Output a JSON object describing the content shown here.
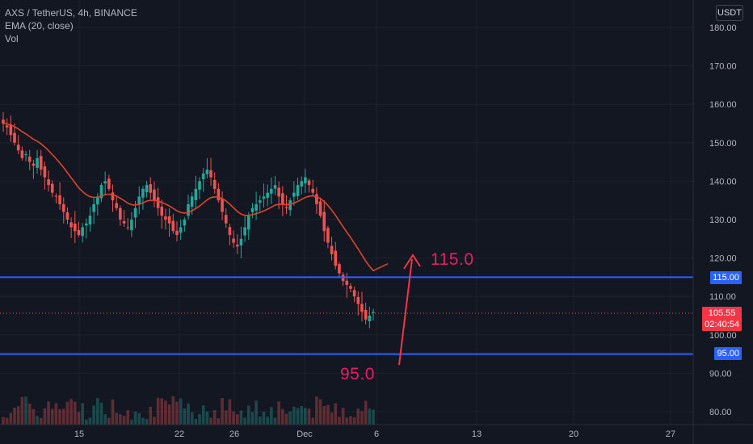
{
  "header": {
    "symbol": "AXS / TetherUS, 4h, BINANCE",
    "indicator_ema": "EMA (20, close)",
    "indicator_vol": "Vol",
    "currency": "USDT"
  },
  "axis": {
    "y_ticks": [
      "180.00",
      "170.00",
      "160.00",
      "150.00",
      "140.00",
      "130.00",
      "120.00",
      "110.00",
      "100.00",
      "90.00",
      "80.00"
    ],
    "x_ticks": [
      "15",
      "22",
      "26",
      "Dec",
      "6",
      "13",
      "20",
      "27"
    ]
  },
  "price_tags": {
    "level_high": "115.00",
    "level_low": "95.00",
    "last_price": "105.55",
    "countdown": "02:40:54"
  },
  "annotations": {
    "upper_target": "115.0",
    "lower_target": "95.0"
  },
  "colors": {
    "background": "#131722",
    "up_candle": "#26a69a",
    "down_candle": "#ef5350",
    "ema_line": "#e0452a",
    "horizontal_lines": "#2962ff",
    "annotation": "#e91e63",
    "arrow": "#f23645"
  },
  "chart_data": {
    "type": "candlestick",
    "ylim": [
      76,
      186
    ],
    "horizontal_levels": [
      115,
      95
    ],
    "last_price": 105.55,
    "close_series": [
      155,
      154,
      152,
      150,
      148,
      146,
      147,
      145,
      144,
      146,
      143,
      141,
      139,
      137,
      136,
      134,
      132,
      130,
      128,
      127,
      126,
      128,
      129,
      131,
      134,
      136,
      139,
      140,
      138,
      135,
      133,
      130,
      129,
      128,
      130,
      133,
      136,
      138,
      139,
      137,
      135,
      133,
      131,
      130,
      129,
      127,
      126,
      128,
      130,
      134,
      136,
      138,
      140,
      142,
      143,
      141,
      138,
      135,
      132,
      129,
      126,
      124,
      123,
      125,
      128,
      131,
      133,
      134,
      135,
      136,
      137,
      138,
      139,
      136,
      134,
      133,
      135,
      137,
      139,
      140,
      141,
      139,
      137,
      134,
      131,
      127,
      124,
      121,
      118,
      116,
      114,
      113,
      112,
      110,
      108,
      106,
      104,
      105,
      106
    ]
  }
}
